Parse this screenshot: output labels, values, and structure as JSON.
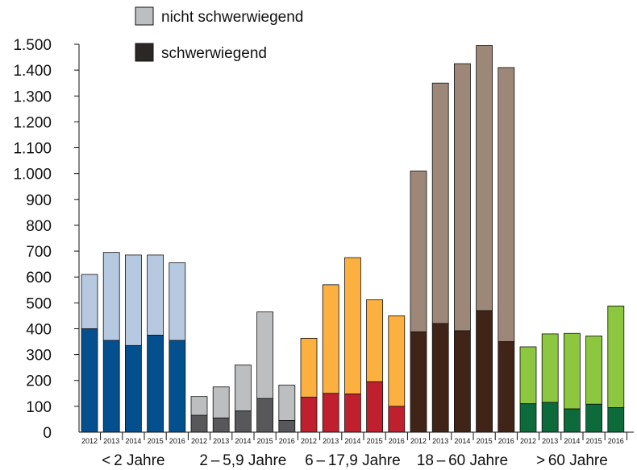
{
  "chart_data": {
    "type": "bar",
    "stacked": true,
    "ylim": [
      0,
      1500
    ],
    "yticks": [
      0,
      100,
      200,
      300,
      400,
      500,
      600,
      700,
      800,
      900,
      1000,
      1100,
      1200,
      1300,
      1400,
      1500
    ],
    "ytick_labels": [
      "0",
      "100",
      "200",
      "300",
      "400",
      "500",
      "600",
      "700",
      "800",
      "900",
      "1.000",
      "1.100",
      "1.200",
      "1.300",
      "1.400",
      "1.500"
    ],
    "years": [
      "2012",
      "2013",
      "2014",
      "2015",
      "2016"
    ],
    "legend": {
      "position": "top-left",
      "entries": [
        {
          "label": "nicht schwerwiegend",
          "color": "#bdbec0"
        },
        {
          "label": "schwerwiegend",
          "color": "#2b2726"
        }
      ]
    },
    "groups": [
      {
        "label": "< 2 Jahre",
        "color_serious": "#044f8d",
        "color_non_serious": "#b6c9e1",
        "serious": [
          400,
          355,
          335,
          375,
          355
        ],
        "total": [
          610,
          695,
          685,
          685,
          655
        ]
      },
      {
        "label": "2 – 5,9 Jahre",
        "color_serious": "#58585a",
        "color_non_serious": "#bdbec0",
        "serious": [
          65,
          55,
          82,
          130,
          45
        ],
        "total": [
          138,
          175,
          260,
          465,
          182
        ]
      },
      {
        "label": "6 – 17,9 Jahre",
        "color_serious": "#c0202e",
        "color_non_serious": "#fbb040",
        "serious": [
          135,
          150,
          148,
          195,
          100
        ],
        "total": [
          363,
          570,
          675,
          512,
          450
        ]
      },
      {
        "label": "18 – 60 Jahre",
        "color_serious": "#3f2417",
        "color_non_serious": "#9c8778",
        "serious": [
          388,
          420,
          392,
          470,
          350
        ],
        "total": [
          1010,
          1350,
          1425,
          1495,
          1410
        ]
      },
      {
        "label": "> 60 Jahre",
        "color_serious": "#0d6a3a",
        "color_non_serious": "#8dc63f",
        "serious": [
          110,
          115,
          90,
          108,
          95
        ],
        "total": [
          330,
          380,
          382,
          372,
          488
        ]
      }
    ]
  }
}
